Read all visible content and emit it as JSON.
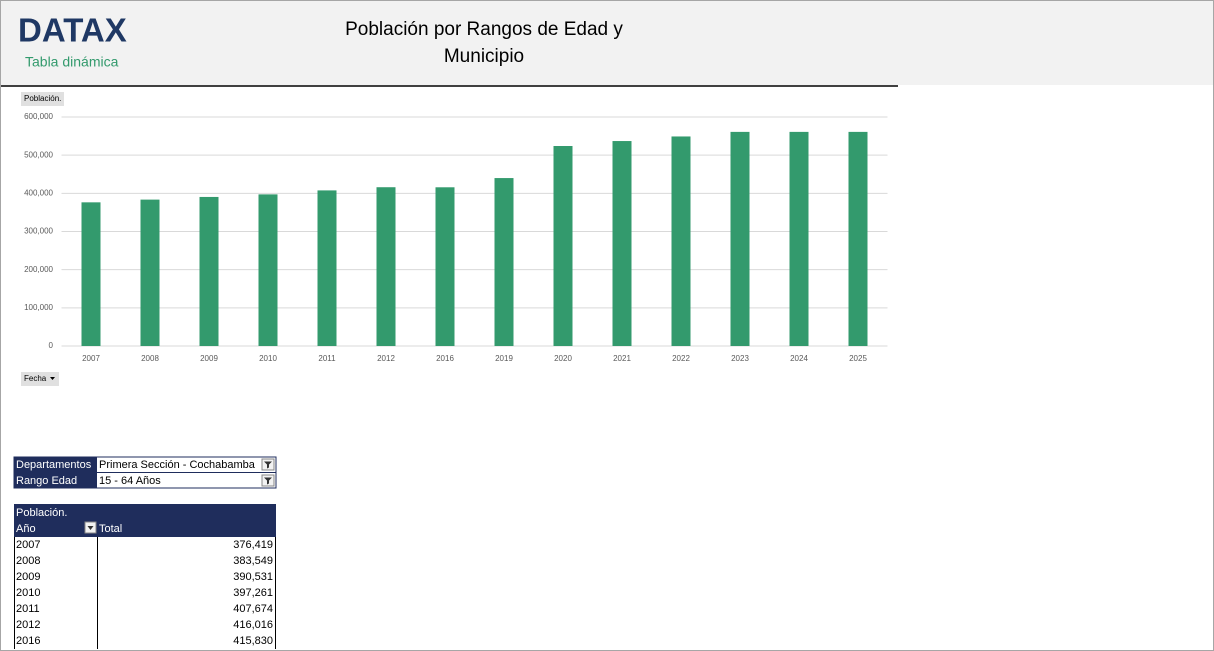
{
  "header": {
    "logo": "DATAX",
    "subtitle": "Tabla dinámica"
  },
  "chart_data": {
    "type": "bar",
    "title": [
      "Población  por Rangos de Edad y",
      "Municipio"
    ],
    "value_field": "Población.",
    "axis_field": "Fecha",
    "categories": [
      "2007",
      "2008",
      "2009",
      "2010",
      "2011",
      "2012",
      "2016",
      "2019",
      "2020",
      "2021",
      "2022",
      "2023",
      "2024",
      "2025"
    ],
    "values": [
      376419,
      383549,
      390531,
      397261,
      407674,
      416016,
      415830,
      440000,
      524000,
      537000,
      549000,
      561000,
      561000,
      561000
    ],
    "color": "#339a6d",
    "ylim": [
      0,
      600000
    ],
    "yticks": [
      0,
      {
        "value": 100000,
        "label": "100,000"
      },
      {
        "value": 200000,
        "label": "200,000"
      },
      {
        "value": 300000,
        "label": "300,000"
      },
      {
        "value": 400000,
        "label": "400,000"
      },
      {
        "value": 500000,
        "label": "500,000"
      },
      {
        "value": 600000,
        "label": "600,000"
      }
    ],
    "grid": true
  },
  "filters": [
    [
      "Departamentos",
      "Primera Sección - Cochabamba"
    ],
    [
      "Rango Edad",
      "15 - 64 Años"
    ]
  ],
  "table": {
    "header": [
      "Población.",
      "Año",
      "Total"
    ],
    "rows": [
      [
        "2007",
        "376,419"
      ],
      [
        "2008",
        "383,549"
      ],
      [
        "2009",
        "390,531"
      ],
      [
        "2010",
        "397,261"
      ],
      [
        "2011",
        "407,674"
      ],
      [
        "2012",
        "416,016"
      ],
      [
        "2016",
        "415,830"
      ]
    ]
  }
}
